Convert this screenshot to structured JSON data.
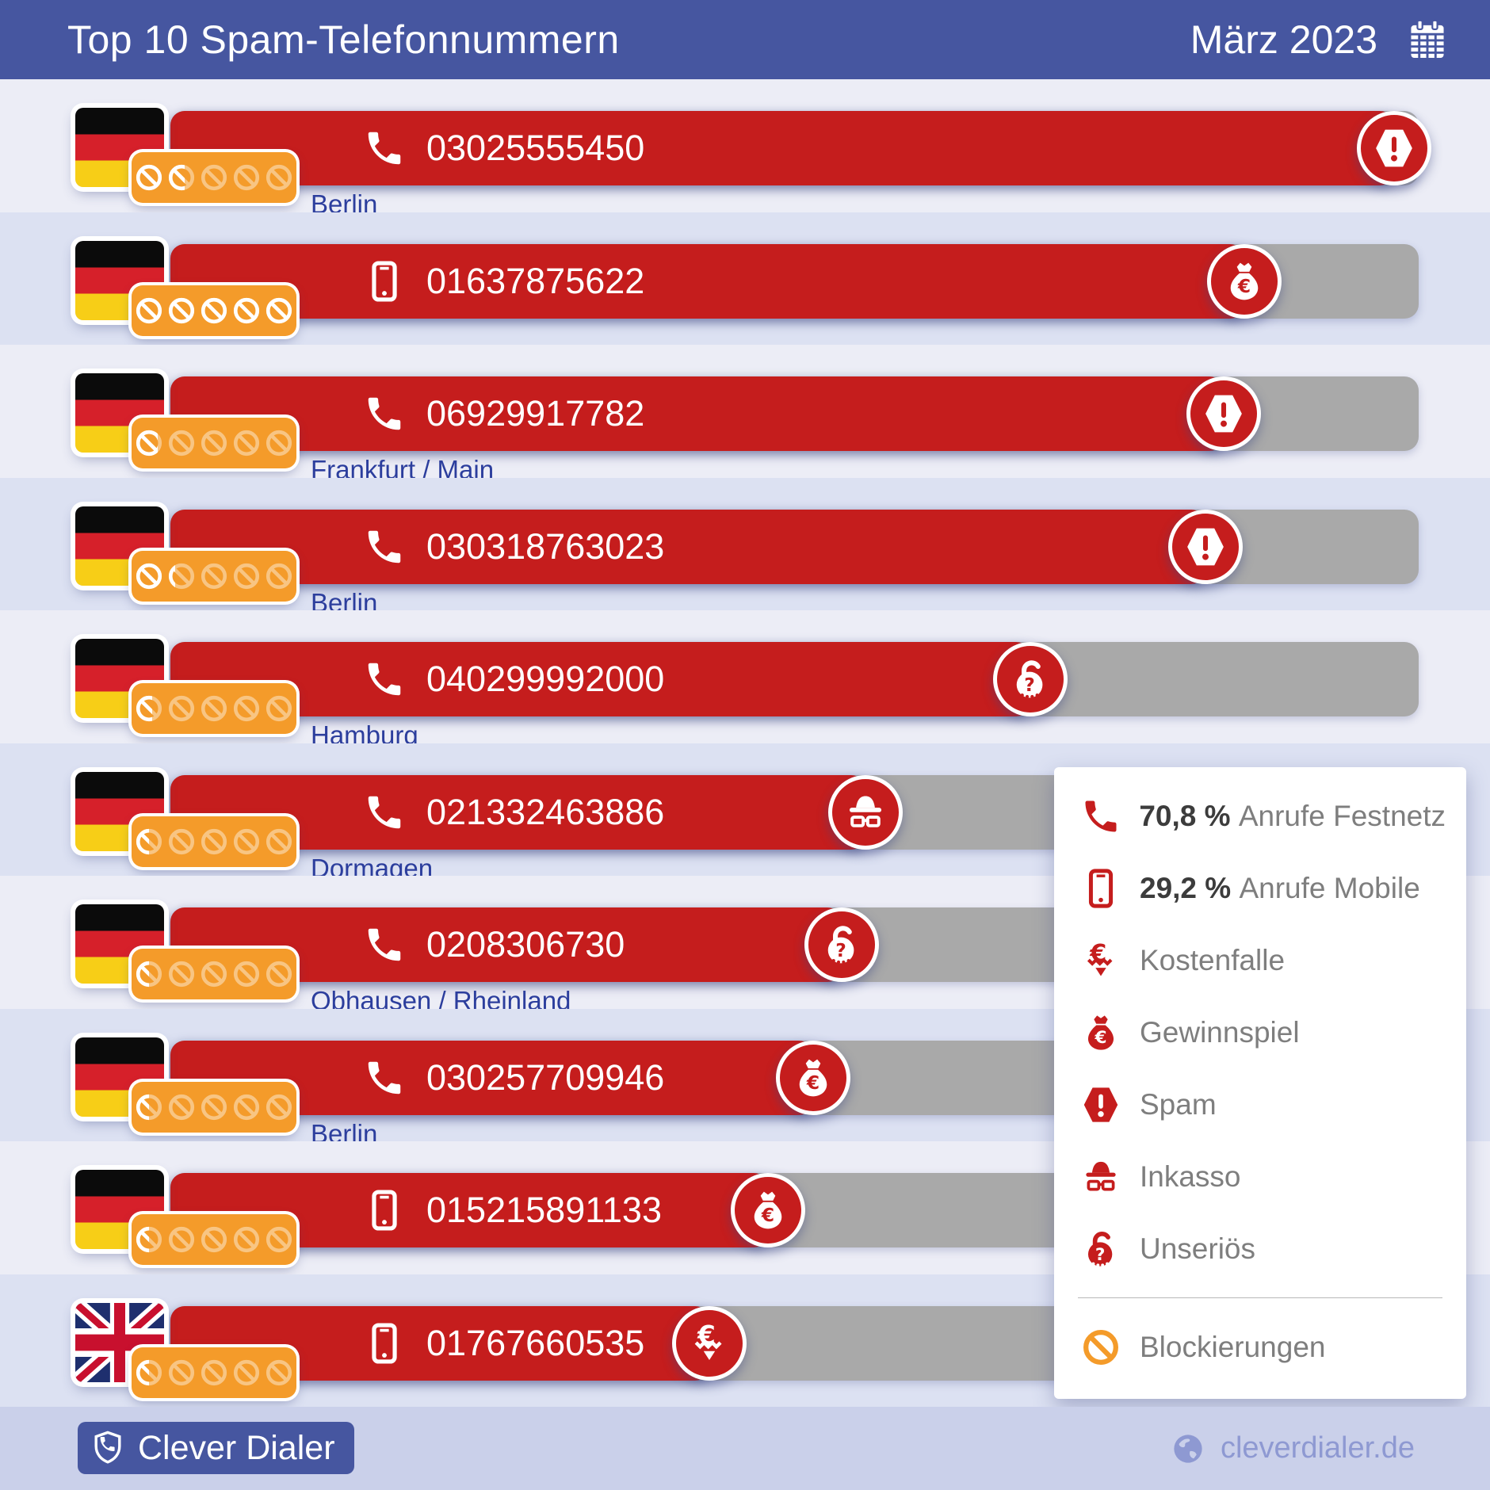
{
  "header": {
    "title": "Top 10 Spam-Telefonnummern",
    "period": "März 2023"
  },
  "colors": {
    "blue": "#4656a0",
    "red": "#c51d1d",
    "orange": "#f49b2a",
    "gray": "#a9a9a9",
    "stripe_a": "#ecedf6",
    "stripe_b": "#dce1f2",
    "footer_bg": "#cad0ea",
    "city_blue": "#2c3e9d",
    "text_dark": "#3c3c3c",
    "text_gray": "#7e7e7e",
    "muted_blue": "#8e99d2"
  },
  "rows": [
    {
      "rank": 1,
      "flag": "de",
      "phone_type": "festnetz",
      "number": "03025555450",
      "city": "Berlin",
      "category": "spam",
      "blocked_rating": 1.6,
      "bar_pct": 98.0
    },
    {
      "rank": 2,
      "flag": "de",
      "phone_type": "mobile",
      "number": "01637875622",
      "city": "",
      "category": "gewinnspiel",
      "blocked_rating": 5,
      "bar_pct": 86.0
    },
    {
      "rank": 3,
      "flag": "de",
      "phone_type": "festnetz",
      "number": "06929917782",
      "city": "Frankfurt / Main",
      "category": "spam",
      "blocked_rating": 0.8,
      "bar_pct": 84.4
    },
    {
      "rank": 4,
      "flag": "de",
      "phone_type": "festnetz",
      "number": "030318763023",
      "city": "Berlin",
      "category": "spam",
      "blocked_rating": 1.3,
      "bar_pct": 82.9
    },
    {
      "rank": 5,
      "flag": "de",
      "phone_type": "festnetz",
      "number": "040299992000",
      "city": "Hamburg",
      "category": "unserioes",
      "blocked_rating": 0.6,
      "bar_pct": 68.9
    },
    {
      "rank": 6,
      "flag": "de",
      "phone_type": "festnetz",
      "number": "021332463886",
      "city": "Dormagen",
      "category": "inkasso",
      "blocked_rating": 0.5,
      "bar_pct": 55.7
    },
    {
      "rank": 7,
      "flag": "de",
      "phone_type": "festnetz",
      "number": "0208306730",
      "city": "Obhausen / Rheinland",
      "category": "unserioes",
      "blocked_rating": 0.5,
      "bar_pct": 53.8
    },
    {
      "rank": 8,
      "flag": "de",
      "phone_type": "festnetz",
      "number": "030257709946",
      "city": "Berlin",
      "category": "gewinnspiel",
      "blocked_rating": 0.5,
      "bar_pct": 51.5
    },
    {
      "rank": 9,
      "flag": "de",
      "phone_type": "mobile",
      "number": "015215891133",
      "city": "",
      "category": "gewinnspiel",
      "blocked_rating": 0.5,
      "bar_pct": 47.9
    },
    {
      "rank": 10,
      "flag": "gb",
      "phone_type": "mobile",
      "number": "01767660535",
      "city": "",
      "category": "kostenfalle",
      "blocked_rating": 0.5,
      "bar_pct": 43.2
    }
  ],
  "legend": {
    "items": [
      {
        "icon": "festnetz",
        "value": "70,8 %",
        "label": "Anrufe Festnetz"
      },
      {
        "icon": "mobile",
        "value": "29,2 %",
        "label": "Anrufe Mobile"
      },
      {
        "icon": "kostenfalle",
        "value": "",
        "label": "Kostenfalle"
      },
      {
        "icon": "gewinnspiel",
        "value": "",
        "label": "Gewinnspiel"
      },
      {
        "icon": "spam",
        "value": "",
        "label": "Spam"
      },
      {
        "icon": "inkasso",
        "value": "",
        "label": "Inkasso"
      },
      {
        "icon": "unserioes",
        "value": "",
        "label": "Unseriös"
      },
      {
        "icon": "blocked",
        "value": "",
        "label": "Blockierungen",
        "divider_before": true
      }
    ]
  },
  "footer": {
    "brand": "Clever Dialer",
    "website": "cleverdialer.de"
  },
  "chart_data": {
    "type": "bar",
    "orientation": "horizontal",
    "title": "Top 10 Spam-Telefonnummern",
    "period": "März 2023",
    "categories": [
      "03025555450",
      "01637875622",
      "06929917782",
      "030318763023",
      "040299992000",
      "021332463886",
      "0208306730",
      "030257709946",
      "015215891133",
      "01767660535"
    ],
    "values_relative_bar_length_pct": [
      98.0,
      86.0,
      84.4,
      82.9,
      68.9,
      55.7,
      53.8,
      51.5,
      47.9,
      43.2
    ],
    "cities": [
      "Berlin",
      "",
      "Frankfurt / Main",
      "Berlin",
      "Hamburg",
      "Dormagen",
      "Obhausen / Rheinland",
      "Berlin",
      "",
      ""
    ],
    "spam_categories": [
      "Spam",
      "Gewinnspiel",
      "Spam",
      "Spam",
      "Unseriös",
      "Inkasso",
      "Unseriös",
      "Gewinnspiel",
      "Gewinnspiel",
      "Kostenfalle"
    ],
    "phone_types": [
      "Festnetz",
      "Mobile",
      "Festnetz",
      "Festnetz",
      "Festnetz",
      "Festnetz",
      "Festnetz",
      "Festnetz",
      "Mobile",
      "Mobile"
    ],
    "countries": [
      "DE",
      "DE",
      "DE",
      "DE",
      "DE",
      "DE",
      "DE",
      "DE",
      "DE",
      "GB"
    ],
    "blockierungen_rating_of_5": [
      1.6,
      5,
      0.8,
      1.3,
      0.6,
      0.5,
      0.5,
      0.5,
      0.5,
      0.5
    ],
    "call_share": {
      "festnetz_pct": 70.8,
      "mobile_pct": 29.2
    },
    "legend_position": "right-bottom",
    "grid": false
  }
}
